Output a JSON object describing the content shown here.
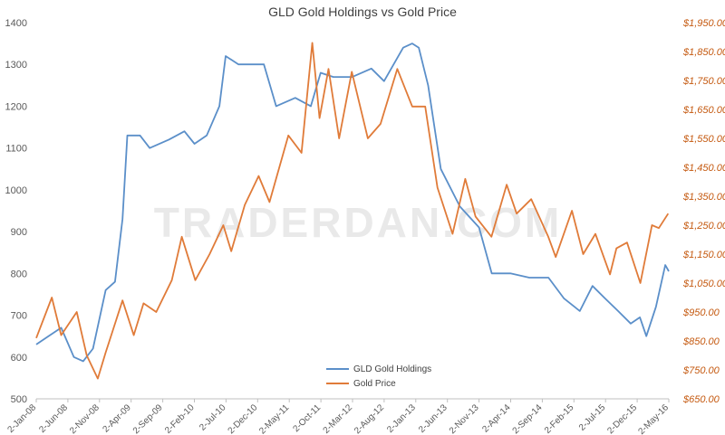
{
  "chart_data": {
    "type": "line",
    "title": "GLD Gold Holdings vs Gold Price",
    "watermark": "TRADERDAN.COM",
    "x_tick_labels": [
      "2-Jan-08",
      "2-Jun-08",
      "2-Nov-08",
      "2-Apr-09",
      "2-Sep-09",
      "2-Feb-10",
      "2-Jul-10",
      "2-Dec-10",
      "2-May-11",
      "2-Oct-11",
      "2-Mar-12",
      "2-Aug-12",
      "2-Jan-13",
      "2-Jun-13",
      "2-Nov-13",
      "2-Apr-14",
      "2-Sep-14",
      "2-Feb-15",
      "2-Jul-15",
      "2-Dec-15",
      "2-May-16"
    ],
    "y_left": {
      "min": 500,
      "max": 1400,
      "ticks": [
        500,
        600,
        700,
        800,
        900,
        1000,
        1100,
        1200,
        1300,
        1400
      ],
      "tick_labels": [
        "500",
        "600",
        "700",
        "800",
        "900",
        "1000",
        "1100",
        "1200",
        "1300",
        "1400"
      ]
    },
    "y_right": {
      "min": 650,
      "max": 1950,
      "ticks": [
        650,
        750,
        850,
        950,
        1050,
        1150,
        1250,
        1350,
        1450,
        1550,
        1650,
        1750,
        1850,
        1950
      ],
      "tick_labels": [
        "$650.00",
        "$750.00",
        "$850.00",
        "$950.00",
        "$1,050.00",
        "$1,150.00",
        "$1,250.00",
        "$1,350.00",
        "$1,450.00",
        "$1,550.00",
        "$1,650.00",
        "$1,750.00",
        "$1,850.00",
        "$1,950.00"
      ]
    },
    "grid": false,
    "legend_position": "bottom-center",
    "series": [
      {
        "name": "GLD Gold Holdings",
        "axis": "left",
        "color": "#5b8fc9",
        "x": [
          "2008-01-02",
          "2008-03-01",
          "2008-05-01",
          "2008-07-01",
          "2008-08-15",
          "2008-10-01",
          "2008-12-01",
          "2009-01-15",
          "2009-02-20",
          "2009-03-15",
          "2009-05-15",
          "2009-07-01",
          "2009-10-01",
          "2009-12-15",
          "2010-02-01",
          "2010-04-01",
          "2010-06-01",
          "2010-07-01",
          "2010-09-01",
          "2010-11-01",
          "2011-01-01",
          "2011-03-01",
          "2011-06-01",
          "2011-08-15",
          "2011-10-01",
          "2011-12-01",
          "2012-03-01",
          "2012-06-01",
          "2012-08-01",
          "2012-11-01",
          "2012-12-15",
          "2013-01-15",
          "2013-03-01",
          "2013-05-01",
          "2013-08-01",
          "2013-11-01",
          "2014-01-01",
          "2014-04-01",
          "2014-07-01",
          "2014-10-01",
          "2014-12-15",
          "2015-03-01",
          "2015-05-01",
          "2015-07-01",
          "2015-09-01",
          "2015-11-01",
          "2015-12-15",
          "2016-01-15",
          "2016-03-01",
          "2016-04-15",
          "2016-05-02"
        ],
        "values": [
          630,
          650,
          670,
          600,
          590,
          620,
          760,
          780,
          930,
          1130,
          1130,
          1100,
          1120,
          1140,
          1110,
          1130,
          1200,
          1320,
          1300,
          1300,
          1300,
          1200,
          1220,
          1200,
          1280,
          1270,
          1270,
          1290,
          1260,
          1340,
          1350,
          1340,
          1250,
          1050,
          960,
          910,
          800,
          800,
          790,
          790,
          740,
          710,
          770,
          740,
          710,
          680,
          695,
          650,
          720,
          820,
          805
        ]
      },
      {
        "name": "Gold Price",
        "axis": "right",
        "color": "#e07b39",
        "x": [
          "2008-01-02",
          "2008-03-17",
          "2008-05-01",
          "2008-07-15",
          "2008-09-01",
          "2008-10-24",
          "2008-12-01",
          "2009-02-20",
          "2009-04-15",
          "2009-06-01",
          "2009-08-01",
          "2009-10-15",
          "2009-12-02",
          "2010-02-05",
          "2010-04-15",
          "2010-06-20",
          "2010-07-28",
          "2010-10-01",
          "2010-12-07",
          "2011-01-28",
          "2011-04-29",
          "2011-07-01",
          "2011-08-22",
          "2011-09-26",
          "2011-11-08",
          "2011-12-29",
          "2012-02-28",
          "2012-05-15",
          "2012-07-15",
          "2012-10-04",
          "2012-12-15",
          "2013-02-15",
          "2013-04-15",
          "2013-06-27",
          "2013-08-27",
          "2013-10-15",
          "2013-12-31",
          "2014-03-14",
          "2014-05-01",
          "2014-07-10",
          "2014-09-30",
          "2014-11-05",
          "2015-01-22",
          "2015-03-17",
          "2015-05-15",
          "2015-07-24",
          "2015-08-24",
          "2015-10-14",
          "2015-12-17",
          "2016-02-11",
          "2016-03-15",
          "2016-04-29"
        ],
        "values": [
          860,
          1000,
          870,
          950,
          800,
          720,
          810,
          990,
          870,
          980,
          950,
          1060,
          1210,
          1060,
          1150,
          1250,
          1160,
          1320,
          1420,
          1330,
          1560,
          1500,
          1880,
          1620,
          1790,
          1550,
          1780,
          1550,
          1600,
          1790,
          1660,
          1660,
          1380,
          1220,
          1410,
          1280,
          1210,
          1390,
          1290,
          1340,
          1210,
          1140,
          1300,
          1150,
          1220,
          1080,
          1170,
          1190,
          1050,
          1250,
          1240,
          1290
        ]
      }
    ]
  }
}
